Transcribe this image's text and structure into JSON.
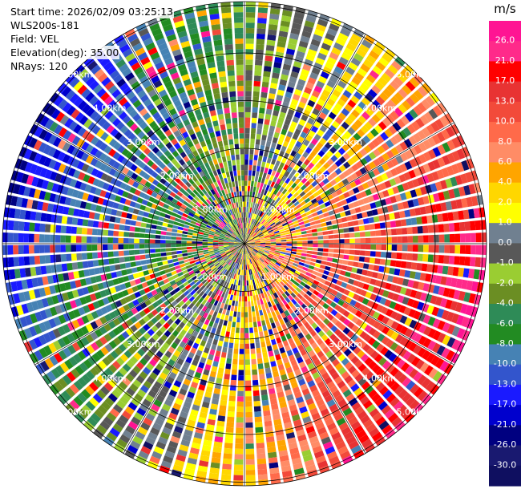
{
  "header": {
    "start_time": "Start time: 2026/02/09 03:25:13",
    "instrument": "WLS200s-181",
    "field": "Field: VEL",
    "elevation": "Elevation(deg): 35.00",
    "nrays": "NRays: 120"
  },
  "chart_data": {
    "type": "ppi",
    "field": "VEL",
    "n_rays": 120,
    "elevation_deg": 35.0,
    "range_rings": [
      "1.00km",
      "2.00km",
      "3.00km",
      "4.00km",
      "5.00km"
    ],
    "max_range_km": 5.0,
    "colorbar": {
      "title": "m/s",
      "tick_labels": [
        "26.0",
        "21.0",
        "17.0",
        "13.0",
        "10.0",
        "8.0",
        "6.0",
        "4.0",
        "2.0",
        "1.0",
        "0.0",
        "-1.0",
        "-2.0",
        "-4.0",
        "-6.0",
        "-8.0",
        "-10.0",
        "-13.0",
        "-17.0",
        "-21.0",
        "-26.0",
        "-30.0"
      ],
      "colors": [
        "#ff1493",
        "#ff2a8a",
        "#ff0000",
        "#e83333",
        "#f24a3a",
        "#ff6a4a",
        "#ff8c66",
        "#ffa500",
        "#ffd700",
        "#ffff00",
        "#708090",
        "#585858",
        "#9acd32",
        "#6b8e23",
        "#2e8b57",
        "#228b22",
        "#4682b4",
        "#3355cc",
        "#1a1aff",
        "#0000cd",
        "#000080",
        "#191970",
        "#0f0f60"
      ]
    }
  }
}
